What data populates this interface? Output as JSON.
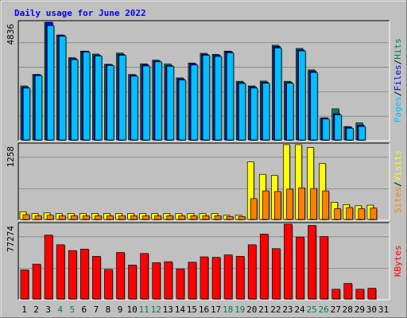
{
  "chart_data": {
    "type": "bar",
    "title": "Daily usage for June 2022",
    "colors": {
      "hits": "#00805c",
      "files": "#0000ff",
      "pages": "#00c0ff",
      "visits": "#ffff00",
      "sites": "#ff8000",
      "kbytes": "#ff0000",
      "weekend": "#008040",
      "weekday": "#000000",
      "title": "#0000ff",
      "background": "#c0c0c0"
    },
    "x": [
      "1",
      "2",
      "3",
      "4",
      "5",
      "6",
      "7",
      "8",
      "9",
      "10",
      "11",
      "12",
      "13",
      "14",
      "15",
      "16",
      "17",
      "18",
      "19",
      "20",
      "21",
      "22",
      "23",
      "24",
      "25",
      "26",
      "27",
      "28",
      "29",
      "30",
      "31"
    ],
    "weekend_days": [
      4,
      5,
      11,
      12,
      18,
      19,
      25,
      26
    ],
    "panels": [
      {
        "id": "hits-files-pages",
        "ymax_label": "4836",
        "ylim": [
          0,
          4836
        ],
        "right_label": [
          "Pages",
          "/",
          "Files",
          "/",
          "Hits"
        ],
        "right_colors": [
          "#00c0ff",
          "#000000",
          "#0000ff",
          "#000000",
          "#00805c"
        ],
        "series": [
          {
            "name": "Hits",
            "values": [
              2220,
              2690,
              4836,
              4310,
              3380,
              3650,
              3530,
              3110,
              3570,
              2690,
              3130,
              3280,
              3120,
              2550,
              3160,
              3560,
              3520,
              3650,
              2410,
              2220,
              2420,
              3890,
              2410,
              3760,
              2880,
              890,
              1280,
              550,
              700,
              0,
              0
            ]
          },
          {
            "name": "Files",
            "values": [
              2160,
              2690,
              4836,
              4310,
              3340,
              3650,
              3480,
              3090,
              3520,
              2660,
              3090,
              3240,
              3060,
              2510,
              3130,
              3520,
              3480,
              3630,
              2360,
              2180,
              2370,
              3840,
              2360,
              3700,
              2830,
              910,
              1080,
              520,
              610,
              0,
              0
            ]
          },
          {
            "name": "Pages",
            "values": [
              2130,
              2640,
              4700,
              4260,
              3300,
              3610,
              3450,
              3060,
              3480,
              2620,
              3040,
              3210,
              3030,
              2460,
              3080,
              3480,
              3430,
              3580,
              2320,
              2130,
              2330,
              3780,
              2330,
              3660,
              2770,
              860,
              1030,
              480,
              550,
              0,
              0
            ]
          }
        ]
      },
      {
        "id": "visits-sites",
        "ymax_label": "1258",
        "ylim": [
          0,
          1258
        ],
        "right_label": [
          "Sites",
          "/",
          "Visits"
        ],
        "right_colors": [
          "#ff8000",
          "#000000",
          "#ffff00"
        ],
        "series": [
          {
            "name": "Visits",
            "values": [
              130,
              100,
              110,
              100,
              100,
              100,
              100,
              100,
              100,
              100,
              100,
              100,
              100,
              100,
              100,
              100,
              100,
              70,
              70,
              970,
              760,
              740,
              1258,
              1258,
              1210,
              940,
              290,
              250,
              230,
              240,
              0
            ]
          },
          {
            "name": "Sites",
            "values": [
              80,
              60,
              70,
              60,
              60,
              60,
              60,
              60,
              60,
              60,
              60,
              60,
              60,
              60,
              60,
              60,
              60,
              50,
              50,
              350,
              480,
              470,
              510,
              530,
              520,
              480,
              180,
              200,
              180,
              190,
              0
            ]
          }
        ]
      },
      {
        "id": "kbytes",
        "ymax_label": "77274",
        "ylim": [
          0,
          77274
        ],
        "right_label": [
          "KBytes"
        ],
        "right_colors": [
          "#ff0000"
        ],
        "series": [
          {
            "name": "KBytes",
            "values": [
              30000,
              36000,
              66000,
              56000,
              50000,
              51500,
              44000,
              30500,
              48000,
              35000,
              47000,
              37500,
              38500,
              31000,
              38000,
              43500,
              43000,
              45500,
              44000,
              56000,
              67000,
              52000,
              77274,
              64000,
              76000,
              64500,
              10000,
              16000,
              10000,
              11000,
              0
            ]
          }
        ]
      }
    ]
  }
}
